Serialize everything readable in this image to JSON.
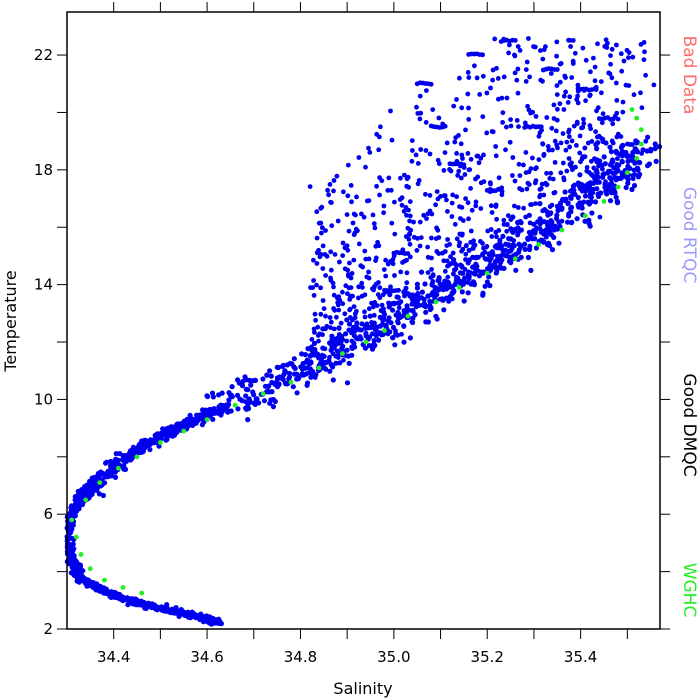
{
  "chart_data": {
    "type": "scatter",
    "xlabel": "Salinity",
    "ylabel": "Temperature",
    "xlim": [
      34.3,
      35.57
    ],
    "ylim": [
      2,
      23.5
    ],
    "x_ticks": [
      "34.4",
      "34.6",
      "34.8",
      "35.0",
      "35.2",
      "35.4"
    ],
    "x_tick_values": [
      34.4,
      34.6,
      34.8,
      35.0,
      35.2,
      35.4
    ],
    "y_ticks": [
      "2",
      "6",
      "10",
      "14",
      "18",
      "22"
    ],
    "y_tick_values": [
      2,
      6,
      10,
      14,
      18,
      22
    ],
    "grid": false,
    "legend_placement": "right, rotated vertical",
    "legend": [
      {
        "label": "Bad Data",
        "color": "#ff6b6b"
      },
      {
        "label": "Good RTQC",
        "color": "#9a9aff"
      },
      {
        "label": "Good DMQC",
        "color": "#000000"
      },
      {
        "label": "WGHC",
        "color": "#22ee22"
      }
    ],
    "series": [
      {
        "name": "Good RTQC",
        "color": "#0000ee",
        "core_curve": [
          [
            34.625,
            2.2
          ],
          [
            34.58,
            2.45
          ],
          [
            34.52,
            2.65
          ],
          [
            34.45,
            2.9
          ],
          [
            34.38,
            3.3
          ],
          [
            34.33,
            3.8
          ],
          [
            34.305,
            4.5
          ],
          [
            34.3,
            5.2
          ],
          [
            34.305,
            5.9
          ],
          [
            34.33,
            6.5
          ],
          [
            34.37,
            7.2
          ],
          [
            34.42,
            7.9
          ],
          [
            34.48,
            8.5
          ],
          [
            34.55,
            9.1
          ],
          [
            34.62,
            9.6
          ],
          [
            34.7,
            10.2
          ],
          [
            34.78,
            10.8
          ],
          [
            34.86,
            11.5
          ],
          [
            34.94,
            12.3
          ],
          [
            35.02,
            13.0
          ],
          [
            35.1,
            13.7
          ],
          [
            35.18,
            14.5
          ],
          [
            35.26,
            15.3
          ],
          [
            35.34,
            16.2
          ],
          [
            35.42,
            17.1
          ],
          [
            35.48,
            18.0
          ],
          [
            35.52,
            19.0
          ]
        ],
        "scatter_regions": [
          {
            "x": [
              34.82,
              35.57
            ],
            "y": [
              12.0,
              22.6
            ]
          }
        ]
      },
      {
        "name": "WGHC",
        "color": "#22ee22",
        "values": [
          [
            34.31,
            5.8
          ],
          [
            34.32,
            5.2
          ],
          [
            34.33,
            4.6
          ],
          [
            34.35,
            4.1
          ],
          [
            34.38,
            3.7
          ],
          [
            34.42,
            3.45
          ],
          [
            34.46,
            3.25
          ],
          [
            34.34,
            6.5
          ],
          [
            34.37,
            7.1
          ],
          [
            34.41,
            7.6
          ],
          [
            34.45,
            8.0
          ],
          [
            34.5,
            8.5
          ],
          [
            34.55,
            8.9
          ],
          [
            34.6,
            9.3
          ],
          [
            34.66,
            9.8
          ],
          [
            34.72,
            10.2
          ],
          [
            34.78,
            10.6
          ],
          [
            34.84,
            11.1
          ],
          [
            34.89,
            11.6
          ],
          [
            34.94,
            12.0
          ],
          [
            34.98,
            12.4
          ],
          [
            35.03,
            12.9
          ],
          [
            35.09,
            13.4
          ],
          [
            35.14,
            13.9
          ],
          [
            35.2,
            14.4
          ],
          [
            35.26,
            14.9
          ],
          [
            35.31,
            15.4
          ],
          [
            35.36,
            15.9
          ],
          [
            35.41,
            16.4
          ],
          [
            35.45,
            16.9
          ],
          [
            35.48,
            17.4
          ],
          [
            35.5,
            17.9
          ],
          [
            35.52,
            18.4
          ],
          [
            35.53,
            18.9
          ],
          [
            35.53,
            19.4
          ],
          [
            35.52,
            19.8
          ],
          [
            35.51,
            20.1
          ]
        ]
      }
    ]
  }
}
